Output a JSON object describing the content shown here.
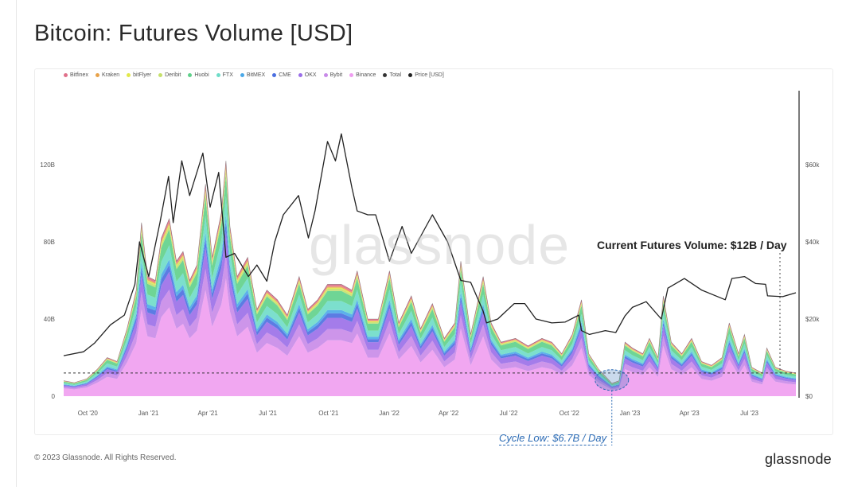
{
  "title": "Bitcoin: Futures Volume [USD]",
  "watermark": "glassnode",
  "footer": {
    "copyright": "© 2023 Glassnode. All Rights Reserved.",
    "brand": "glassnode"
  },
  "annotations": {
    "current": "Current Futures Volume: $12B / Day",
    "cycle_low": "Cycle Low: $6.7B / Day"
  },
  "legend": [
    {
      "label": "Bitfinex",
      "color": "#e0708a"
    },
    {
      "label": "Kraken",
      "color": "#e8a24a"
    },
    {
      "label": "bitFlyer",
      "color": "#e2e84a"
    },
    {
      "label": "Deribit",
      "color": "#c5e06a"
    },
    {
      "label": "Huobi",
      "color": "#5fd08a"
    },
    {
      "label": "FTX",
      "color": "#6edcc8"
    },
    {
      "label": "BitMEX",
      "color": "#4aa8e8"
    },
    {
      "label": "CME",
      "color": "#4a6ee0"
    },
    {
      "label": "OKX",
      "color": "#9a6ee8"
    },
    {
      "label": "Bybit",
      "color": "#c88ae8"
    },
    {
      "label": "Binance",
      "color": "#ef9df0"
    },
    {
      "label": "Total",
      "color": "#333333"
    },
    {
      "label": "Price [USD]",
      "color": "#222222"
    }
  ],
  "chart_data": {
    "type": "area",
    "x_ticks": [
      "Oct '20",
      "Jan '21",
      "Apr '21",
      "Jul '21",
      "Oct '21",
      "Jan '22",
      "Apr '22",
      "Jul '22",
      "Oct '22",
      "Jan '23",
      "Apr '23",
      "Jul '23"
    ],
    "y_left_ticks": [
      "0",
      "40B",
      "80B",
      "120B"
    ],
    "y_left_ticks_values": [
      0,
      40,
      80,
      120
    ],
    "y_left_range": [
      0,
      160
    ],
    "y_right_ticks": [
      "$0",
      "$20k",
      "$40k",
      "$60k"
    ],
    "y_right_ticks_values": [
      0,
      20,
      40,
      60
    ],
    "y_right_range": [
      0,
      80
    ],
    "x_start": "2020-09-15",
    "x_end": "2023-09-30",
    "reference_line_B": 12,
    "series": [
      {
        "name": "Total",
        "unit": "B USD",
        "points": [
          [
            "2020-09-15",
            8
          ],
          [
            "2020-10-01",
            7
          ],
          [
            "2020-10-20",
            9
          ],
          [
            "2020-11-05",
            14
          ],
          [
            "2020-11-20",
            20
          ],
          [
            "2020-12-05",
            18
          ],
          [
            "2020-12-20",
            35
          ],
          [
            "2021-01-03",
            55
          ],
          [
            "2021-01-11",
            90
          ],
          [
            "2021-01-20",
            62
          ],
          [
            "2021-02-01",
            60
          ],
          [
            "2021-02-10",
            82
          ],
          [
            "2021-02-22",
            92
          ],
          [
            "2021-03-05",
            70
          ],
          [
            "2021-03-15",
            75
          ],
          [
            "2021-03-25",
            60
          ],
          [
            "2021-04-05",
            68
          ],
          [
            "2021-04-18",
            110
          ],
          [
            "2021-04-28",
            72
          ],
          [
            "2021-05-12",
            95
          ],
          [
            "2021-05-19",
            122
          ],
          [
            "2021-05-25",
            88
          ],
          [
            "2021-06-05",
            62
          ],
          [
            "2021-06-21",
            72
          ],
          [
            "2021-07-05",
            45
          ],
          [
            "2021-07-20",
            55
          ],
          [
            "2021-08-05",
            50
          ],
          [
            "2021-08-20",
            42
          ],
          [
            "2021-09-07",
            62
          ],
          [
            "2021-09-20",
            45
          ],
          [
            "2021-10-05",
            50
          ],
          [
            "2021-10-20",
            58
          ],
          [
            "2021-11-10",
            58
          ],
          [
            "2021-11-26",
            55
          ],
          [
            "2021-12-04",
            65
          ],
          [
            "2021-12-20",
            40
          ],
          [
            "2022-01-05",
            40
          ],
          [
            "2022-01-22",
            65
          ],
          [
            "2022-02-05",
            38
          ],
          [
            "2022-02-24",
            52
          ],
          [
            "2022-03-10",
            35
          ],
          [
            "2022-03-28",
            48
          ],
          [
            "2022-04-15",
            30
          ],
          [
            "2022-05-01",
            38
          ],
          [
            "2022-05-10",
            70
          ],
          [
            "2022-05-25",
            32
          ],
          [
            "2022-06-13",
            62
          ],
          [
            "2022-06-25",
            38
          ],
          [
            "2022-07-10",
            28
          ],
          [
            "2022-08-01",
            30
          ],
          [
            "2022-08-20",
            26
          ],
          [
            "2022-09-10",
            30
          ],
          [
            "2022-09-25",
            28
          ],
          [
            "2022-10-10",
            22
          ],
          [
            "2022-10-26",
            32
          ],
          [
            "2022-11-09",
            50
          ],
          [
            "2022-11-20",
            22
          ],
          [
            "2022-12-05",
            14
          ],
          [
            "2022-12-25",
            6.7
          ],
          [
            "2023-01-05",
            8
          ],
          [
            "2023-01-14",
            28
          ],
          [
            "2023-01-25",
            25
          ],
          [
            "2023-02-10",
            22
          ],
          [
            "2023-02-20",
            30
          ],
          [
            "2023-03-05",
            20
          ],
          [
            "2023-03-13",
            52
          ],
          [
            "2023-03-25",
            28
          ],
          [
            "2023-04-10",
            22
          ],
          [
            "2023-04-25",
            30
          ],
          [
            "2023-05-10",
            18
          ],
          [
            "2023-05-25",
            16
          ],
          [
            "2023-06-10",
            20
          ],
          [
            "2023-06-21",
            38
          ],
          [
            "2023-07-05",
            22
          ],
          [
            "2023-07-14",
            32
          ],
          [
            "2023-07-25",
            15
          ],
          [
            "2023-08-10",
            12
          ],
          [
            "2023-08-17",
            25
          ],
          [
            "2023-08-30",
            15
          ],
          [
            "2023-09-15",
            13
          ],
          [
            "2023-09-30",
            12
          ]
        ]
      },
      {
        "name": "Price [USD]",
        "unit": "k USD",
        "points": [
          [
            "2020-09-15",
            10.5
          ],
          [
            "2020-10-15",
            11.5
          ],
          [
            "2020-11-01",
            13.8
          ],
          [
            "2020-11-25",
            18.5
          ],
          [
            "2020-12-16",
            21
          ],
          [
            "2021-01-01",
            29
          ],
          [
            "2021-01-08",
            40
          ],
          [
            "2021-01-22",
            31
          ],
          [
            "2021-02-08",
            45
          ],
          [
            "2021-02-21",
            57
          ],
          [
            "2021-02-28",
            45
          ],
          [
            "2021-03-13",
            61
          ],
          [
            "2021-03-25",
            52
          ],
          [
            "2021-04-14",
            63
          ],
          [
            "2021-04-25",
            49
          ],
          [
            "2021-05-08",
            58
          ],
          [
            "2021-05-19",
            36
          ],
          [
            "2021-06-01",
            37
          ],
          [
            "2021-06-22",
            31
          ],
          [
            "2021-07-05",
            34
          ],
          [
            "2021-07-20",
            29.8
          ],
          [
            "2021-08-01",
            40
          ],
          [
            "2021-08-14",
            47
          ],
          [
            "2021-09-06",
            52
          ],
          [
            "2021-09-21",
            41
          ],
          [
            "2021-10-01",
            48
          ],
          [
            "2021-10-20",
            66
          ],
          [
            "2021-11-01",
            61
          ],
          [
            "2021-11-10",
            68
          ],
          [
            "2021-11-26",
            54
          ],
          [
            "2021-12-04",
            48
          ],
          [
            "2021-12-20",
            47
          ],
          [
            "2022-01-01",
            47
          ],
          [
            "2022-01-22",
            35
          ],
          [
            "2022-02-10",
            44
          ],
          [
            "2022-02-24",
            37
          ],
          [
            "2022-03-28",
            47
          ],
          [
            "2022-04-20",
            40
          ],
          [
            "2022-05-10",
            30
          ],
          [
            "2022-05-25",
            29.5
          ],
          [
            "2022-06-13",
            22
          ],
          [
            "2022-06-18",
            19
          ],
          [
            "2022-07-05",
            20
          ],
          [
            "2022-07-30",
            24
          ],
          [
            "2022-08-15",
            24
          ],
          [
            "2022-09-01",
            20
          ],
          [
            "2022-09-25",
            19
          ],
          [
            "2022-10-15",
            19.2
          ],
          [
            "2022-11-05",
            21
          ],
          [
            "2022-11-09",
            17
          ],
          [
            "2022-11-21",
            16
          ],
          [
            "2022-12-15",
            17
          ],
          [
            "2022-12-31",
            16.5
          ],
          [
            "2023-01-14",
            20.8
          ],
          [
            "2023-01-25",
            23
          ],
          [
            "2023-02-15",
            24.5
          ],
          [
            "2023-03-10",
            20
          ],
          [
            "2023-03-20",
            28
          ],
          [
            "2023-04-14",
            30.5
          ],
          [
            "2023-05-10",
            27.5
          ],
          [
            "2023-06-15",
            25
          ],
          [
            "2023-06-25",
            30.5
          ],
          [
            "2023-07-14",
            31
          ],
          [
            "2023-07-31",
            29.2
          ],
          [
            "2023-08-15",
            29
          ],
          [
            "2023-08-18",
            26
          ],
          [
            "2023-09-10",
            25.8
          ],
          [
            "2023-09-30",
            26.8
          ]
        ]
      }
    ],
    "stack_shares": [
      {
        "name": "Binance",
        "share": 0.5
      },
      {
        "name": "Bybit",
        "share": 0.1
      },
      {
        "name": "OKX",
        "share": 0.1
      },
      {
        "name": "CME",
        "share": 0.04
      },
      {
        "name": "BitMEX",
        "share": 0.03
      },
      {
        "name": "FTX",
        "share": 0.08
      },
      {
        "name": "Huobi",
        "share": 0.09
      },
      {
        "name": "Deribit",
        "share": 0.02
      },
      {
        "name": "bitFlyer",
        "share": 0.01
      },
      {
        "name": "Kraken",
        "share": 0.01
      },
      {
        "name": "Bitfinex",
        "share": 0.02
      }
    ]
  }
}
